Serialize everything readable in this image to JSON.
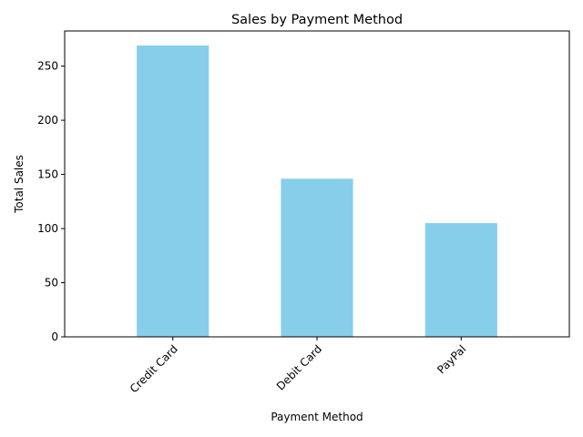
{
  "chart_data": {
    "type": "bar",
    "title": "Sales by Payment Method",
    "xlabel": "Payment Method",
    "ylabel": "Total Sales",
    "categories": [
      "Credit Card",
      "Debit Card",
      "PayPal"
    ],
    "values": [
      269,
      146,
      105
    ],
    "ylim": [
      0,
      282.45
    ],
    "yticks": [
      0,
      50,
      100,
      150,
      200,
      250
    ],
    "bar_color": "#87ceeb",
    "grid": false,
    "legend": "none"
  }
}
